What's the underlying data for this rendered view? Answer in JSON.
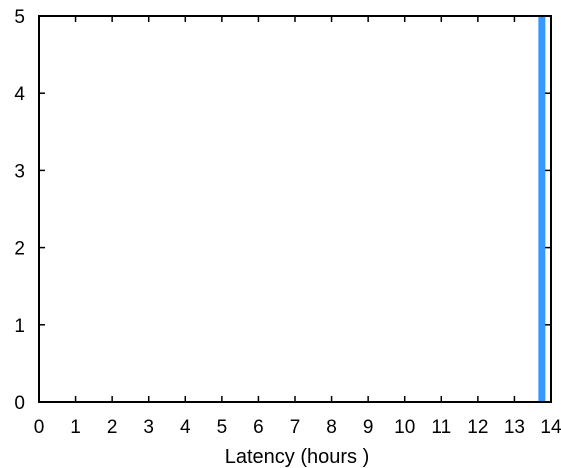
{
  "chart_data": {
    "type": "bar",
    "xlabel": "Latency (hours )",
    "ylabel": "",
    "xlim": [
      0,
      14
    ],
    "ylim": [
      0,
      5
    ],
    "x_ticks": [
      0,
      1,
      2,
      3,
      4,
      5,
      6,
      7,
      8,
      9,
      10,
      11,
      12,
      13,
      14
    ],
    "y_ticks": [
      0,
      1,
      2,
      3,
      4,
      5
    ],
    "bars": [
      {
        "x": 13.75,
        "value": 5
      }
    ],
    "bar_color": "#3399ff",
    "grid": false
  }
}
